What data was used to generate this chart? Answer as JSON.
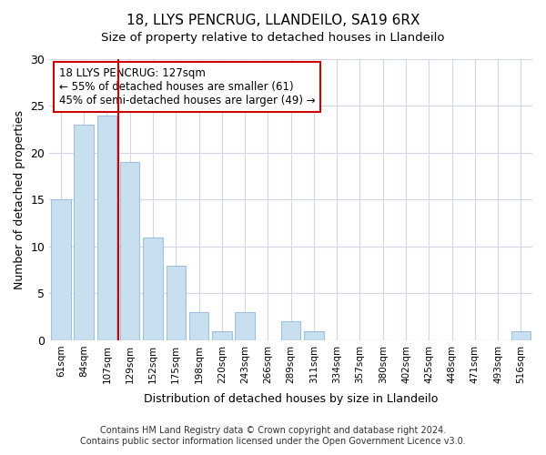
{
  "title1": "18, LLYS PENCRUG, LLANDEILO, SA19 6RX",
  "title2": "Size of property relative to detached houses in Llandeilo",
  "xlabel": "Distribution of detached houses by size in Llandeilo",
  "ylabel": "Number of detached properties",
  "bar_labels": [
    "61sqm",
    "84sqm",
    "107sqm",
    "129sqm",
    "152sqm",
    "175sqm",
    "198sqm",
    "220sqm",
    "243sqm",
    "266sqm",
    "289sqm",
    "311sqm",
    "334sqm",
    "357sqm",
    "380sqm",
    "402sqm",
    "425sqm",
    "448sqm",
    "471sqm",
    "493sqm",
    "516sqm"
  ],
  "bar_values": [
    15,
    23,
    24,
    19,
    11,
    8,
    3,
    1,
    3,
    0,
    2,
    1,
    0,
    0,
    0,
    0,
    0,
    0,
    0,
    0,
    1
  ],
  "bar_color": "#c8dff0",
  "bar_edge_color": "#a0c0e0",
  "vline_x": 2.5,
  "vline_color": "#cc0000",
  "annotation_title": "18 LLYS PENCRUG: 127sqm",
  "annotation_line1": "← 55% of detached houses are smaller (61)",
  "annotation_line2": "45% of semi-detached houses are larger (49) →",
  "annotation_box_color": "#ffffff",
  "annotation_box_edge": "#cc0000",
  "ylim": [
    0,
    30
  ],
  "yticks": [
    0,
    5,
    10,
    15,
    20,
    25,
    30
  ],
  "footnote1": "Contains HM Land Registry data © Crown copyright and database right 2024.",
  "footnote2": "Contains public sector information licensed under the Open Government Licence v3.0.",
  "bg_color": "#ffffff",
  "grid_color": "#d0d8e8"
}
